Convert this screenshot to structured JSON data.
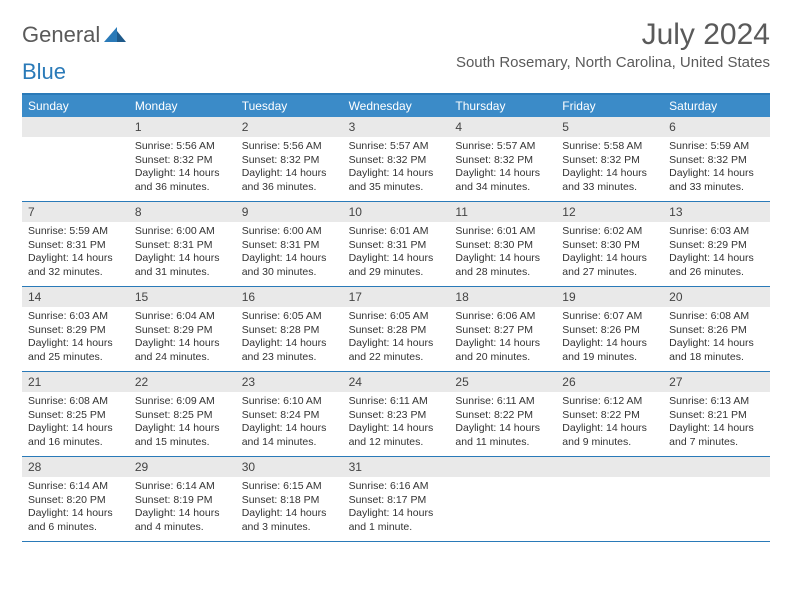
{
  "logo": {
    "part1": "General",
    "part2": "Blue"
  },
  "title": "July 2024",
  "location": "South Rosemary, North Carolina, United States",
  "colors": {
    "header_bg": "#3b8bc8",
    "header_border": "#2a7ab8",
    "daynum_bg": "#e9e9e9",
    "text": "#333333",
    "title_text": "#5a5a5a"
  },
  "day_names": [
    "Sunday",
    "Monday",
    "Tuesday",
    "Wednesday",
    "Thursday",
    "Friday",
    "Saturday"
  ],
  "weeks": [
    [
      {
        "n": "",
        "sr": "",
        "ss": "",
        "dl": ""
      },
      {
        "n": "1",
        "sr": "Sunrise: 5:56 AM",
        "ss": "Sunset: 8:32 PM",
        "dl": "Daylight: 14 hours and 36 minutes."
      },
      {
        "n": "2",
        "sr": "Sunrise: 5:56 AM",
        "ss": "Sunset: 8:32 PM",
        "dl": "Daylight: 14 hours and 36 minutes."
      },
      {
        "n": "3",
        "sr": "Sunrise: 5:57 AM",
        "ss": "Sunset: 8:32 PM",
        "dl": "Daylight: 14 hours and 35 minutes."
      },
      {
        "n": "4",
        "sr": "Sunrise: 5:57 AM",
        "ss": "Sunset: 8:32 PM",
        "dl": "Daylight: 14 hours and 34 minutes."
      },
      {
        "n": "5",
        "sr": "Sunrise: 5:58 AM",
        "ss": "Sunset: 8:32 PM",
        "dl": "Daylight: 14 hours and 33 minutes."
      },
      {
        "n": "6",
        "sr": "Sunrise: 5:59 AM",
        "ss": "Sunset: 8:32 PM",
        "dl": "Daylight: 14 hours and 33 minutes."
      }
    ],
    [
      {
        "n": "7",
        "sr": "Sunrise: 5:59 AM",
        "ss": "Sunset: 8:31 PM",
        "dl": "Daylight: 14 hours and 32 minutes."
      },
      {
        "n": "8",
        "sr": "Sunrise: 6:00 AM",
        "ss": "Sunset: 8:31 PM",
        "dl": "Daylight: 14 hours and 31 minutes."
      },
      {
        "n": "9",
        "sr": "Sunrise: 6:00 AM",
        "ss": "Sunset: 8:31 PM",
        "dl": "Daylight: 14 hours and 30 minutes."
      },
      {
        "n": "10",
        "sr": "Sunrise: 6:01 AM",
        "ss": "Sunset: 8:31 PM",
        "dl": "Daylight: 14 hours and 29 minutes."
      },
      {
        "n": "11",
        "sr": "Sunrise: 6:01 AM",
        "ss": "Sunset: 8:30 PM",
        "dl": "Daylight: 14 hours and 28 minutes."
      },
      {
        "n": "12",
        "sr": "Sunrise: 6:02 AM",
        "ss": "Sunset: 8:30 PM",
        "dl": "Daylight: 14 hours and 27 minutes."
      },
      {
        "n": "13",
        "sr": "Sunrise: 6:03 AM",
        "ss": "Sunset: 8:29 PM",
        "dl": "Daylight: 14 hours and 26 minutes."
      }
    ],
    [
      {
        "n": "14",
        "sr": "Sunrise: 6:03 AM",
        "ss": "Sunset: 8:29 PM",
        "dl": "Daylight: 14 hours and 25 minutes."
      },
      {
        "n": "15",
        "sr": "Sunrise: 6:04 AM",
        "ss": "Sunset: 8:29 PM",
        "dl": "Daylight: 14 hours and 24 minutes."
      },
      {
        "n": "16",
        "sr": "Sunrise: 6:05 AM",
        "ss": "Sunset: 8:28 PM",
        "dl": "Daylight: 14 hours and 23 minutes."
      },
      {
        "n": "17",
        "sr": "Sunrise: 6:05 AM",
        "ss": "Sunset: 8:28 PM",
        "dl": "Daylight: 14 hours and 22 minutes."
      },
      {
        "n": "18",
        "sr": "Sunrise: 6:06 AM",
        "ss": "Sunset: 8:27 PM",
        "dl": "Daylight: 14 hours and 20 minutes."
      },
      {
        "n": "19",
        "sr": "Sunrise: 6:07 AM",
        "ss": "Sunset: 8:26 PM",
        "dl": "Daylight: 14 hours and 19 minutes."
      },
      {
        "n": "20",
        "sr": "Sunrise: 6:08 AM",
        "ss": "Sunset: 8:26 PM",
        "dl": "Daylight: 14 hours and 18 minutes."
      }
    ],
    [
      {
        "n": "21",
        "sr": "Sunrise: 6:08 AM",
        "ss": "Sunset: 8:25 PM",
        "dl": "Daylight: 14 hours and 16 minutes."
      },
      {
        "n": "22",
        "sr": "Sunrise: 6:09 AM",
        "ss": "Sunset: 8:25 PM",
        "dl": "Daylight: 14 hours and 15 minutes."
      },
      {
        "n": "23",
        "sr": "Sunrise: 6:10 AM",
        "ss": "Sunset: 8:24 PM",
        "dl": "Daylight: 14 hours and 14 minutes."
      },
      {
        "n": "24",
        "sr": "Sunrise: 6:11 AM",
        "ss": "Sunset: 8:23 PM",
        "dl": "Daylight: 14 hours and 12 minutes."
      },
      {
        "n": "25",
        "sr": "Sunrise: 6:11 AM",
        "ss": "Sunset: 8:22 PM",
        "dl": "Daylight: 14 hours and 11 minutes."
      },
      {
        "n": "26",
        "sr": "Sunrise: 6:12 AM",
        "ss": "Sunset: 8:22 PM",
        "dl": "Daylight: 14 hours and 9 minutes."
      },
      {
        "n": "27",
        "sr": "Sunrise: 6:13 AM",
        "ss": "Sunset: 8:21 PM",
        "dl": "Daylight: 14 hours and 7 minutes."
      }
    ],
    [
      {
        "n": "28",
        "sr": "Sunrise: 6:14 AM",
        "ss": "Sunset: 8:20 PM",
        "dl": "Daylight: 14 hours and 6 minutes."
      },
      {
        "n": "29",
        "sr": "Sunrise: 6:14 AM",
        "ss": "Sunset: 8:19 PM",
        "dl": "Daylight: 14 hours and 4 minutes."
      },
      {
        "n": "30",
        "sr": "Sunrise: 6:15 AM",
        "ss": "Sunset: 8:18 PM",
        "dl": "Daylight: 14 hours and 3 minutes."
      },
      {
        "n": "31",
        "sr": "Sunrise: 6:16 AM",
        "ss": "Sunset: 8:17 PM",
        "dl": "Daylight: 14 hours and 1 minute."
      },
      {
        "n": "",
        "sr": "",
        "ss": "",
        "dl": ""
      },
      {
        "n": "",
        "sr": "",
        "ss": "",
        "dl": ""
      },
      {
        "n": "",
        "sr": "",
        "ss": "",
        "dl": ""
      }
    ]
  ]
}
